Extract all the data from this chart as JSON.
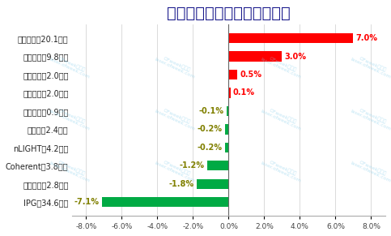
{
  "title": "国内光纤激光器市场份额变化",
  "categories": [
    "IPG（34.6亿）",
    "其他品牌（2.8亿）",
    "Coherent（3.8亿）",
    "nLIGHT（4.2亿）",
    "杰普特（2.4亿）",
    "海富光子（0.9亿）",
    "飞博激光（2.0亿）",
    "联品激光（2.0亿）",
    "创鑫激光（9.8亿）",
    "锐科激光（20.1亿）"
  ],
  "values": [
    -7.1,
    -1.8,
    -1.2,
    -0.2,
    -0.2,
    -0.1,
    0.1,
    0.5,
    3.0,
    7.0
  ],
  "bar_color_positive": "#ff0000",
  "bar_color_negative": "#00aa44",
  "label_color_positive": "#ff0000",
  "label_color_negative_small": "#808000",
  "label_color_ipg": "#808000",
  "title_color": "#1a1a8c",
  "title_fontsize": 14,
  "ytick_fontsize": 7,
  "xtick_fontsize": 6.5,
  "label_fontsize": 7,
  "xlim": [
    -8.8,
    8.8
  ],
  "xticks": [
    -8.0,
    -6.0,
    -4.0,
    -2.0,
    0.0,
    2.0,
    4.0,
    6.0,
    8.0
  ],
  "xtick_labels": [
    "-8.0%",
    "-6.0%",
    "-4.0%",
    "-2.0%",
    "0.0%",
    "2.0%",
    "4.0%",
    "6.0%",
    "8.0%"
  ],
  "background_color": "#ffffff",
  "grid_color": "#cccccc",
  "bar_height": 0.55
}
